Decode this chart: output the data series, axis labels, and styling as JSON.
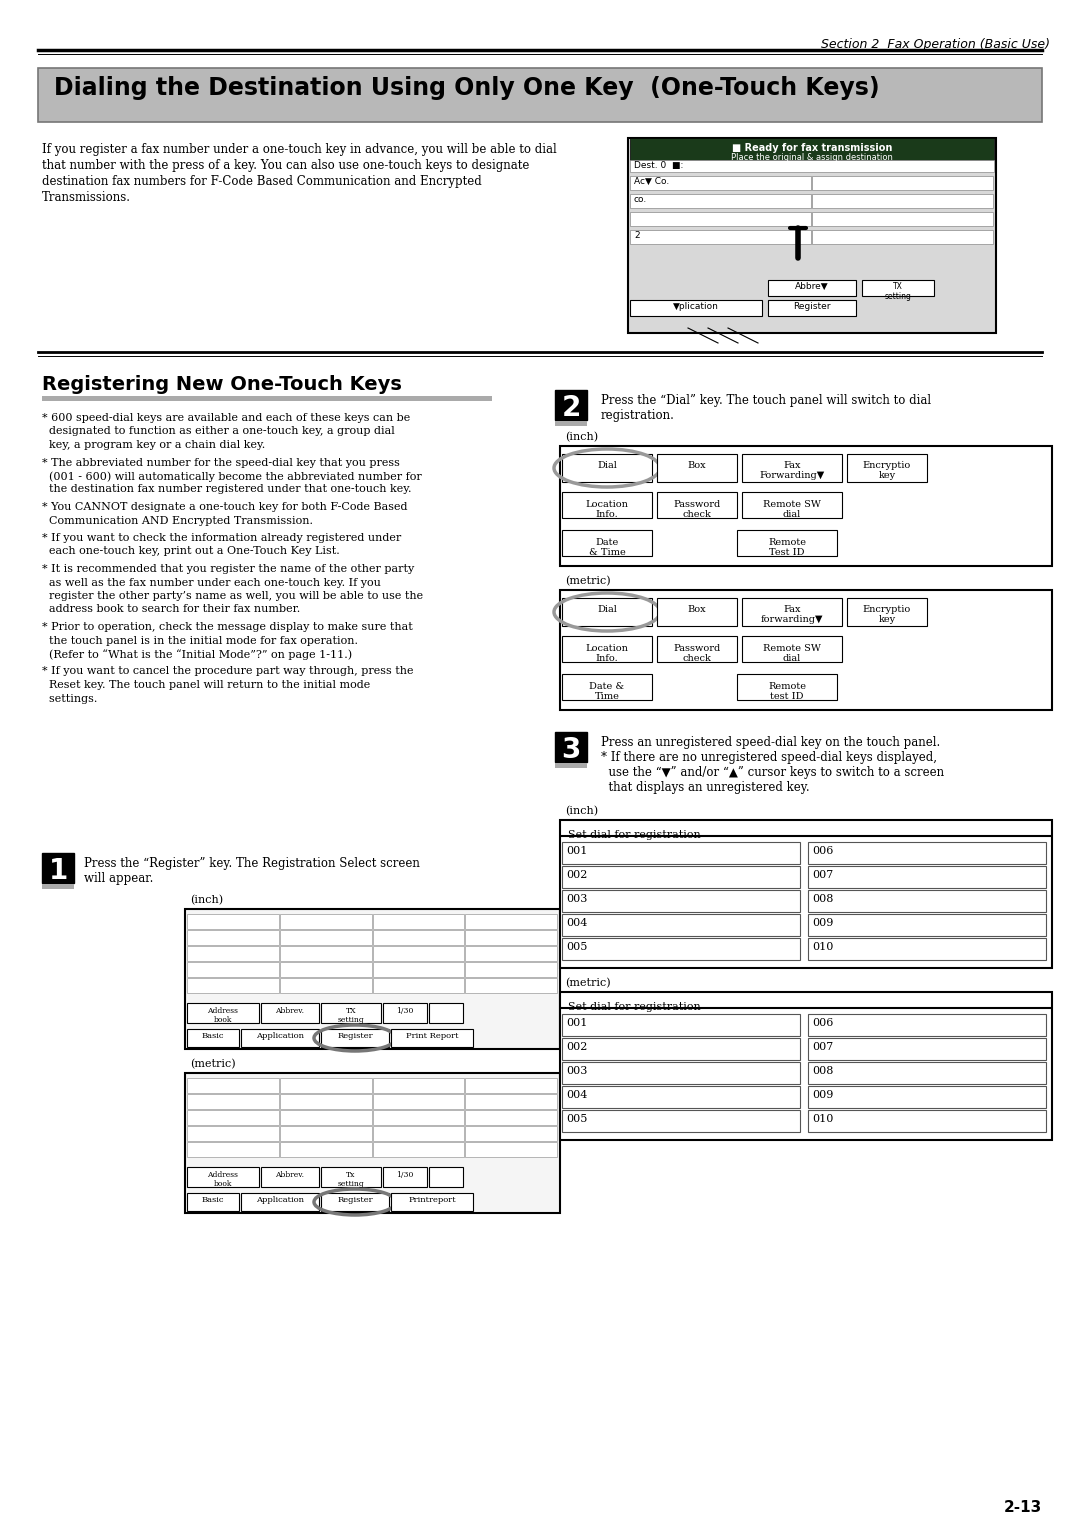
{
  "page_bg": "#ffffff",
  "section_header": "Section 2  Fax Operation (Basic Use)",
  "title": "Dialing the Destination Using Only One Key  (One-Touch Keys)",
  "title_bg": "#b8b8b8",
  "section2_title": "Registering New One-Touch Keys",
  "intro_text_lines": [
    "If you register a fax number under a one-touch key in advance, you will be able to dial",
    "that number with the press of a key. You can also use one-touch keys to designate",
    "destination fax numbers for F-Code Based Communication and Encrypted",
    "Transmissions."
  ],
  "bullet_points": [
    [
      "* 600 speed-dial keys are available and each of these keys can be",
      "  designated to function as either a one-touch key, a group dial",
      "  key, a program key or a chain dial key."
    ],
    [
      "* The abbreviated number for the speed-dial key that you press",
      "  (001 - 600) will automatically become the abbreviated number for",
      "  the destination fax number registered under that one-touch key."
    ],
    [
      "* You CANNOT designate a one-touch key for both F-Code Based",
      "  Communication AND Encrypted Transmission."
    ],
    [
      "* If you want to check the information already registered under",
      "  each one-touch key, print out a One-Touch Key List."
    ],
    [
      "* It is recommended that you register the name of the other party",
      "  as well as the fax number under each one-touch key. If you",
      "  register the other party’s name as well, you will be able to use the",
      "  address book to search for their fax number."
    ],
    [
      "* Prior to operation, check the message display to make sure that",
      "  the touch panel is in the initial mode for fax operation.",
      "  (Refer to “What is the “Initial Mode”?” on page 1-11.)"
    ],
    [
      "* If you want to cancel the procedure part way through, press the",
      "  Reset key. The touch panel will return to the initial mode",
      "  settings."
    ]
  ],
  "step1_text": [
    "Press the “Register” key. The Registration Select screen",
    "will appear."
  ],
  "step2_text": [
    "Press the “Dial” key. The touch panel will switch to dial",
    "registration."
  ],
  "step3_text": [
    "Press an unregistered speed-dial key on the touch panel.",
    "* If there are no unregistered speed-dial keys displayed,",
    "  use the “▼” and/or “▲” cursor keys to switch to a screen",
    "  that displays an unregistered key."
  ],
  "page_number": "2-13"
}
